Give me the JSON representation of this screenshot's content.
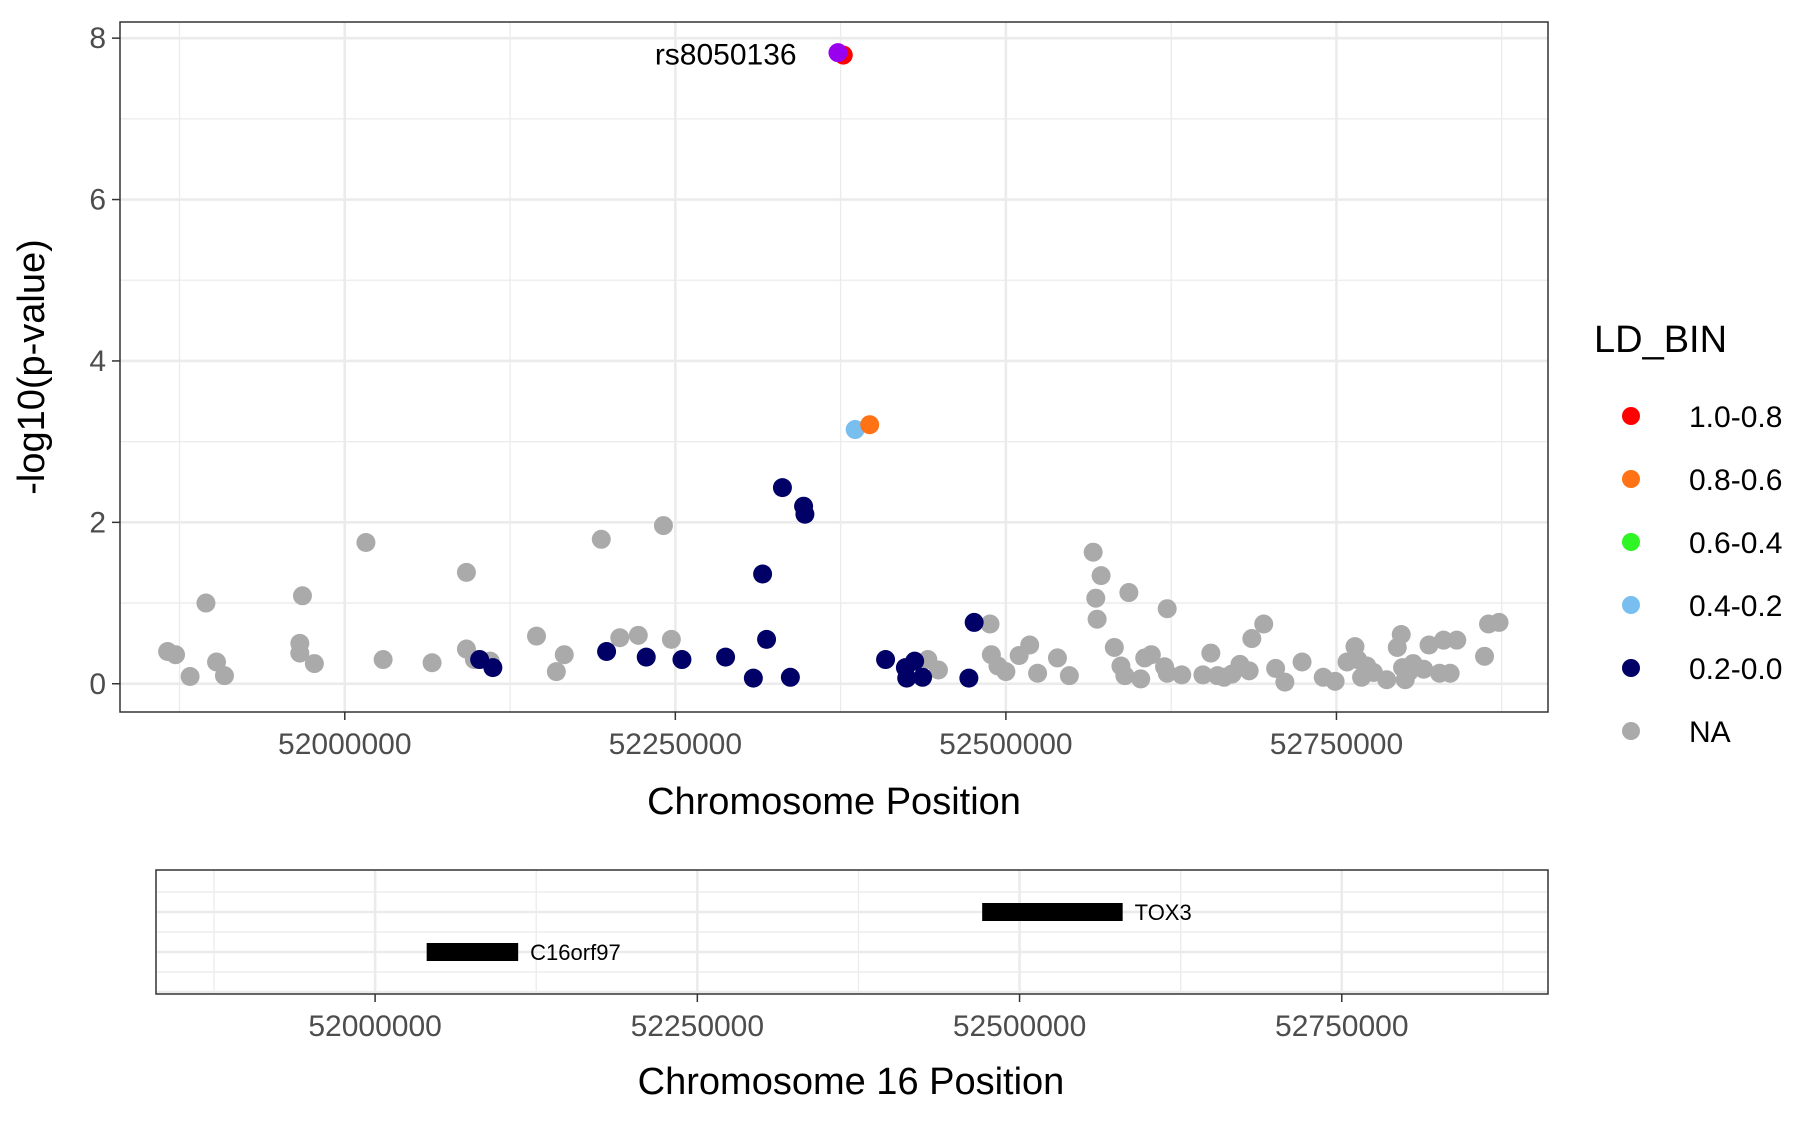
{
  "chart_data": [
    {
      "type": "scatter",
      "xlabel": "Chromosome Position",
      "ylabel": "-log10(p-value)",
      "xlim": [
        51830000,
        52910000
      ],
      "ylim": [
        -0.35,
        8.2
      ],
      "xticks": [
        52000000,
        52250000,
        52500000,
        52750000
      ],
      "xtick_labels": [
        "52000000",
        "52250000",
        "52500000",
        "52750000"
      ],
      "yticks": [
        0,
        2,
        4,
        6,
        8
      ],
      "ytick_labels": [
        "0",
        "2",
        "4",
        "6",
        "8"
      ],
      "grid": true,
      "legend": {
        "title": "LD_BIN",
        "placement": "right",
        "entries": [
          {
            "label": "1.0-0.8",
            "color": "#ff0000"
          },
          {
            "label": "0.8-0.6",
            "color": "#ff7216"
          },
          {
            "label": "0.6-0.4",
            "color": "#2ef523"
          },
          {
            "label": "0.4-0.2",
            "color": "#78bff0"
          },
          {
            "label": "0.2-0.0",
            "color": "#000066"
          },
          {
            "label": "NA",
            "color": "#aaaaaa"
          }
        ]
      },
      "annotations": [
        {
          "text": "rs8050136",
          "x": 52375000,
          "y": 7.8
        }
      ],
      "series": [
        {
          "bin": "1.0-0.8",
          "color": "#ff0000",
          "points": [
            [
              52377000,
              7.79
            ]
          ]
        },
        {
          "bin": "lead",
          "color": "#9900ee",
          "points": [
            [
              52373000,
              7.82
            ]
          ]
        },
        {
          "bin": "0.8-0.6",
          "color": "#ff7216",
          "points": [
            [
              52397000,
              3.21
            ]
          ]
        },
        {
          "bin": "0.4-0.2",
          "color": "#78bff0",
          "points": [
            [
              52386000,
              3.15
            ]
          ]
        },
        {
          "bin": "0.2-0.0",
          "color": "#000066",
          "points": [
            [
              52331000,
              2.43
            ],
            [
              52347000,
              2.2
            ],
            [
              52348000,
              2.1
            ],
            [
              52316000,
              1.36
            ],
            [
              52319000,
              0.55
            ],
            [
              52288000,
              0.33
            ],
            [
              52255000,
              0.3
            ],
            [
              52228000,
              0.33
            ],
            [
              52198000,
              0.4
            ],
            [
              52309000,
              0.07
            ],
            [
              52337000,
              0.08
            ],
            [
              52112000,
              0.2
            ],
            [
              52102000,
              0.3
            ],
            [
              52409000,
              0.3
            ],
            [
              52424000,
              0.2
            ],
            [
              52431000,
              0.28
            ],
            [
              52425000,
              0.07
            ],
            [
              52437000,
              0.08
            ],
            [
              52472000,
              0.07
            ],
            [
              52476000,
              0.76
            ]
          ]
        },
        {
          "bin": "NA",
          "color": "#aaaaaa",
          "points": [
            [
              51866000,
              0.4
            ],
            [
              51872000,
              0.36
            ],
            [
              51883000,
              0.09
            ],
            [
              51895000,
              1.0
            ],
            [
              51903000,
              0.27
            ],
            [
              51909000,
              0.1
            ],
            [
              51966000,
              0.5
            ],
            [
              51966000,
              0.38
            ],
            [
              51968000,
              1.09
            ],
            [
              51977000,
              0.25
            ],
            [
              52016000,
              1.75
            ],
            [
              52029000,
              0.3
            ],
            [
              52066000,
              0.26
            ],
            [
              52092000,
              1.38
            ],
            [
              52092000,
              0.43
            ],
            [
              52098000,
              0.3
            ],
            [
              52110000,
              0.28
            ],
            [
              52145000,
              0.59
            ],
            [
              52160000,
              0.15
            ],
            [
              52166000,
              0.36
            ],
            [
              52194000,
              1.79
            ],
            [
              52208000,
              0.57
            ],
            [
              52222000,
              0.6
            ],
            [
              52241000,
              1.96
            ],
            [
              52247000,
              0.55
            ],
            [
              52441000,
              0.3
            ],
            [
              52449000,
              0.17
            ],
            [
              52488000,
              0.74
            ],
            [
              52489000,
              0.36
            ],
            [
              52494000,
              0.22
            ],
            [
              52500000,
              0.15
            ],
            [
              52510000,
              0.35
            ],
            [
              52518000,
              0.48
            ],
            [
              52524000,
              0.13
            ],
            [
              52539000,
              0.32
            ],
            [
              52548000,
              0.1
            ],
            [
              52566000,
              1.63
            ],
            [
              52568000,
              1.06
            ],
            [
              52569000,
              0.8
            ],
            [
              52572000,
              1.34
            ],
            [
              52582000,
              0.45
            ],
            [
              52587000,
              0.22
            ],
            [
              52590000,
              0.1
            ],
            [
              52593000,
              1.13
            ],
            [
              52602000,
              0.06
            ],
            [
              52605000,
              0.32
            ],
            [
              52610000,
              0.36
            ],
            [
              52620000,
              0.21
            ],
            [
              52622000,
              0.13
            ],
            [
              52622000,
              0.93
            ],
            [
              52633000,
              0.11
            ],
            [
              52649000,
              0.11
            ],
            [
              52655000,
              0.38
            ],
            [
              52660000,
              0.1
            ],
            [
              52665000,
              0.08
            ],
            [
              52671000,
              0.12
            ],
            [
              52677000,
              0.24
            ],
            [
              52684000,
              0.16
            ],
            [
              52686000,
              0.56
            ],
            [
              52695000,
              0.74
            ],
            [
              52704000,
              0.19
            ],
            [
              52711000,
              0.02
            ],
            [
              52724000,
              0.27
            ],
            [
              52740000,
              0.08
            ],
            [
              52749000,
              0.03
            ],
            [
              52758000,
              0.27
            ],
            [
              52764000,
              0.46
            ],
            [
              52766000,
              0.3
            ],
            [
              52769000,
              0.08
            ],
            [
              52773000,
              0.22
            ],
            [
              52778000,
              0.14
            ],
            [
              52788000,
              0.05
            ],
            [
              52796000,
              0.45
            ],
            [
              52799000,
              0.61
            ],
            [
              52800000,
              0.2
            ],
            [
              52802000,
              0.05
            ],
            [
              52805000,
              0.15
            ],
            [
              52808000,
              0.25
            ],
            [
              52816000,
              0.18
            ],
            [
              52820000,
              0.48
            ],
            [
              52828000,
              0.13
            ],
            [
              52831000,
              0.54
            ],
            [
              52836000,
              0.13
            ],
            [
              52841000,
              0.54
            ],
            [
              52862000,
              0.34
            ],
            [
              52865000,
              0.74
            ],
            [
              52873000,
              0.76
            ]
          ]
        }
      ]
    },
    {
      "type": "gene-track",
      "xlabel": "Chromosome 16 Position",
      "xlim": [
        51830000,
        52910000
      ],
      "xticks": [
        52000000,
        52250000,
        52500000,
        52750000
      ],
      "xtick_labels": [
        "52000000",
        "52250000",
        "52500000",
        "52750000"
      ],
      "grid": true,
      "genes": [
        {
          "name": "TOX3",
          "start": 52471000,
          "end": 52580000,
          "row": 1
        },
        {
          "name": "C16orf97",
          "start": 52040000,
          "end": 52111000,
          "row": 2
        }
      ]
    }
  ]
}
